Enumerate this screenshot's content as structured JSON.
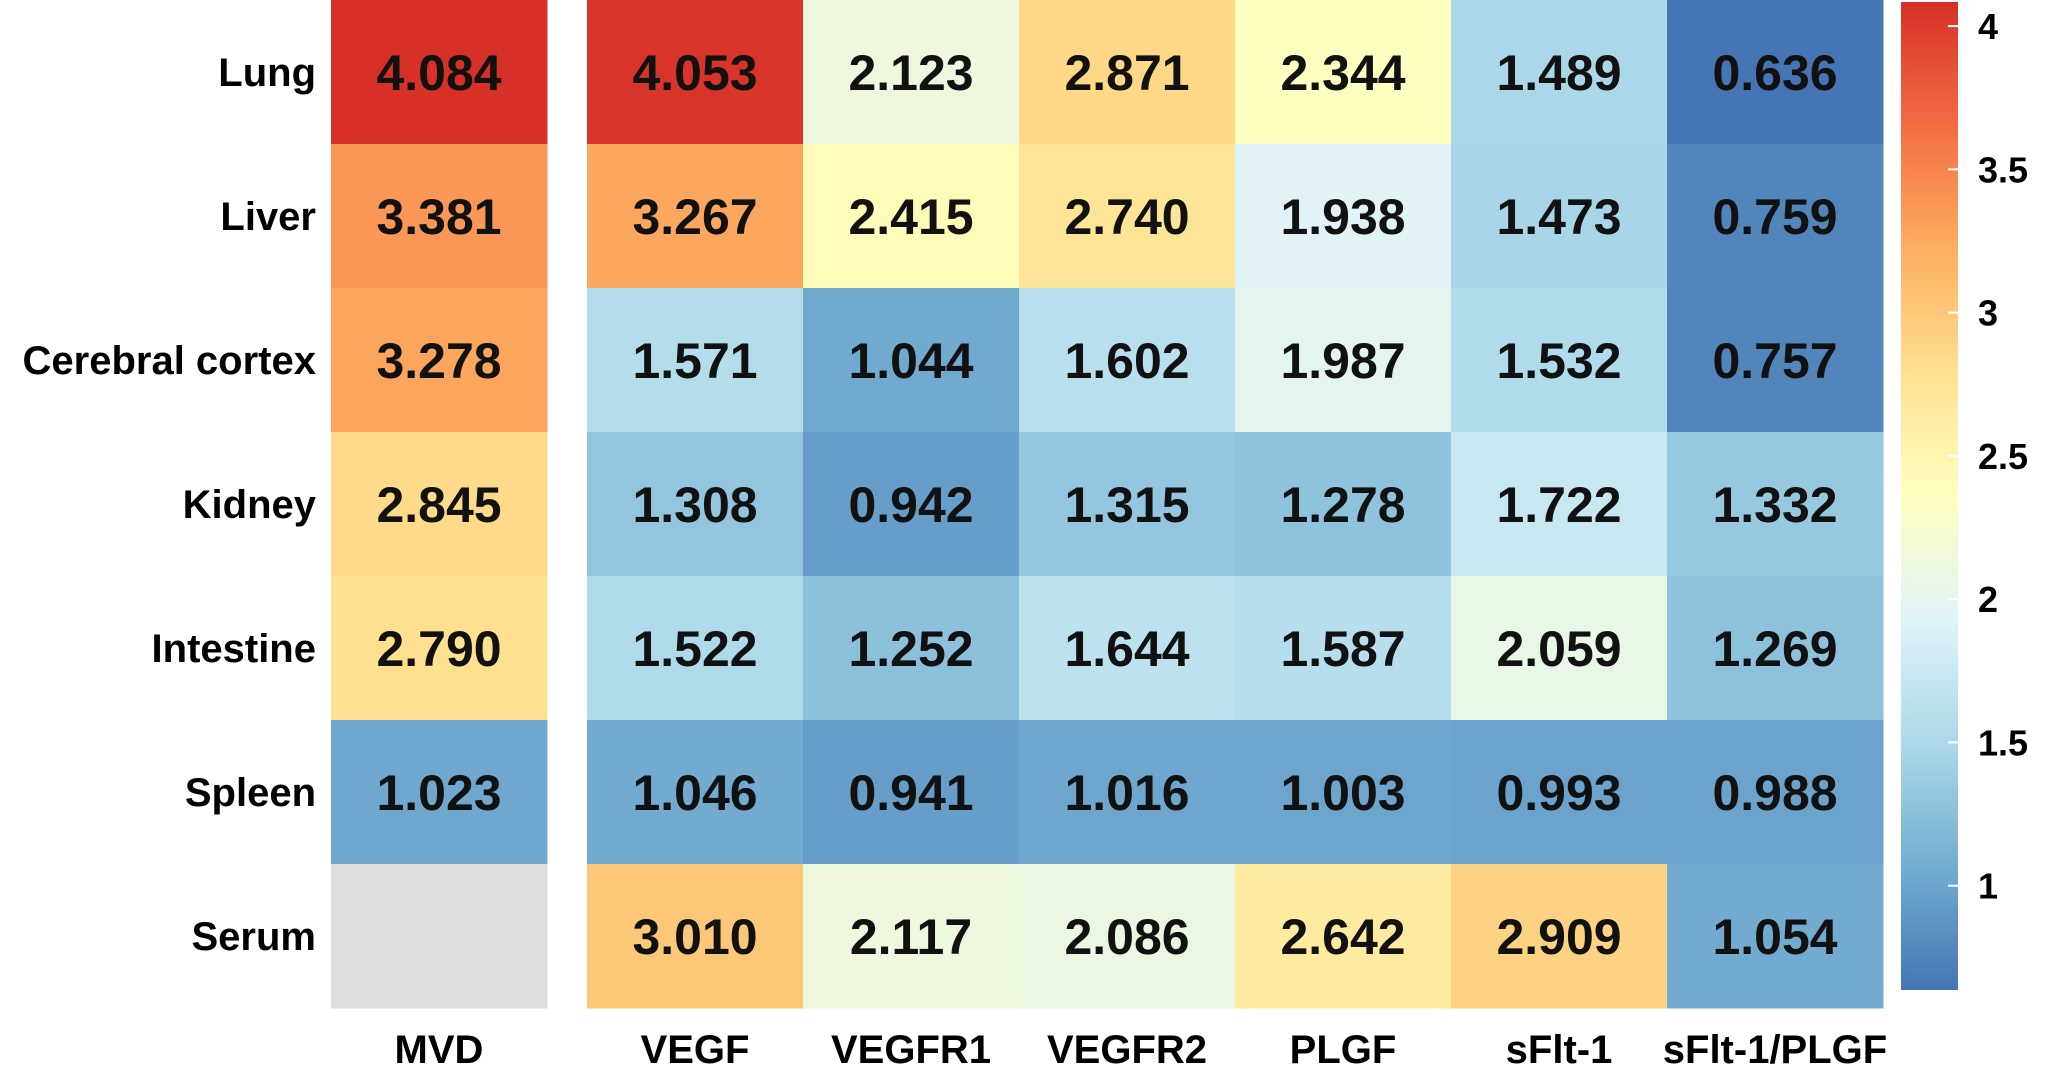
{
  "chart_data": {
    "type": "heatmap",
    "rows": [
      "Lung",
      "Liver",
      "Cerebral cortex",
      "Kidney",
      "Intestine",
      "Spleen",
      "Serum"
    ],
    "columns": [
      "MVD",
      "VEGF",
      "VEGFR1",
      "VEGFR2",
      "PLGF",
      "sFlt-1",
      "sFlt-1/PLGF"
    ],
    "values": [
      [
        "4.084",
        "4.053",
        "2.123",
        "2.871",
        "2.344",
        "1.489",
        "0.636"
      ],
      [
        "3.381",
        "3.267",
        "2.415",
        "2.740",
        "1.938",
        "1.473",
        "0.759"
      ],
      [
        "3.278",
        "1.571",
        "1.044",
        "1.602",
        "1.987",
        "1.532",
        "0.757"
      ],
      [
        "2.845",
        "1.308",
        "0.942",
        "1.315",
        "1.278",
        "1.722",
        "1.332"
      ],
      [
        "2.790",
        "1.522",
        "1.252",
        "1.644",
        "1.587",
        "2.059",
        "1.269"
      ],
      [
        "1.023",
        "1.046",
        "0.941",
        "1.016",
        "1.003",
        "0.993",
        "0.988"
      ],
      [
        null,
        "3.010",
        "2.117",
        "2.086",
        "2.642",
        "2.909",
        "1.054"
      ]
    ],
    "missing_color": "#dddddd",
    "colorbar": {
      "min": 0.636,
      "max": 4.084,
      "ticks": [
        "1",
        "1.5",
        "2",
        "2.5",
        "3",
        "3.5",
        "4"
      ],
      "colors": [
        "#4575b4",
        "#74add1",
        "#abd9e9",
        "#e0f3f8",
        "#ffffbf",
        "#fee090",
        "#fdae61",
        "#f46d43",
        "#d73027"
      ]
    },
    "title": "",
    "xlabel": "",
    "ylabel": ""
  }
}
